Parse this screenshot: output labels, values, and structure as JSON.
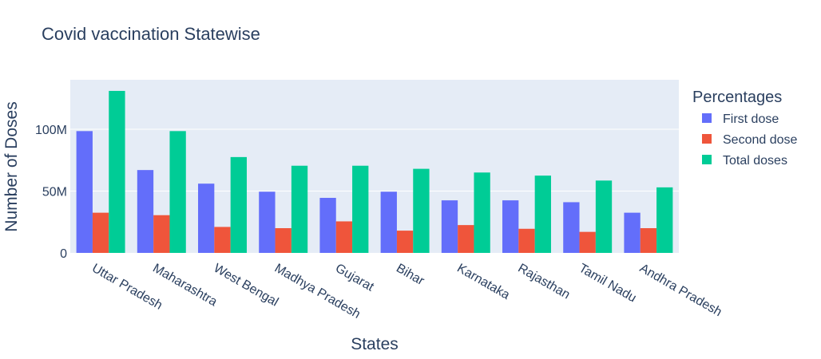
{
  "chart_data": {
    "type": "bar",
    "title": "Covid vaccination Statewise",
    "xlabel": "States",
    "ylabel": "Number of Doses",
    "categories": [
      "Uttar Pradesh",
      "Maharashtra",
      "West Bengal",
      "Madhya Pradesh",
      "Gujarat",
      "Bihar",
      "Karnataka",
      "Rajasthan",
      "Tamil Nadu",
      "Andhra Pradesh"
    ],
    "series": [
      {
        "name": "First dose",
        "color": "#636efa",
        "values": [
          98500000,
          67000000,
          56000000,
          49500000,
          44500000,
          49500000,
          42500000,
          42500000,
          41000000,
          32500000
        ]
      },
      {
        "name": "Second dose",
        "color": "#ef553b",
        "values": [
          32500000,
          30500000,
          21000000,
          20000000,
          25500000,
          18000000,
          22500000,
          19500000,
          17000000,
          20000000
        ]
      },
      {
        "name": "Total doses",
        "color": "#00cc96",
        "values": [
          131000000,
          98500000,
          77500000,
          70500000,
          70500000,
          68000000,
          65000000,
          62500000,
          58500000,
          53000000
        ]
      }
    ],
    "ylim": [
      0,
      140000000
    ],
    "yticks": [
      {
        "value": 0,
        "label": "0"
      },
      {
        "value": 50000000,
        "label": "50M"
      },
      {
        "value": 100000000,
        "label": "100M"
      }
    ],
    "legend": {
      "title": "Percentages",
      "placement": "right"
    },
    "grid": true,
    "plot_bg": "#e5ecf6"
  }
}
